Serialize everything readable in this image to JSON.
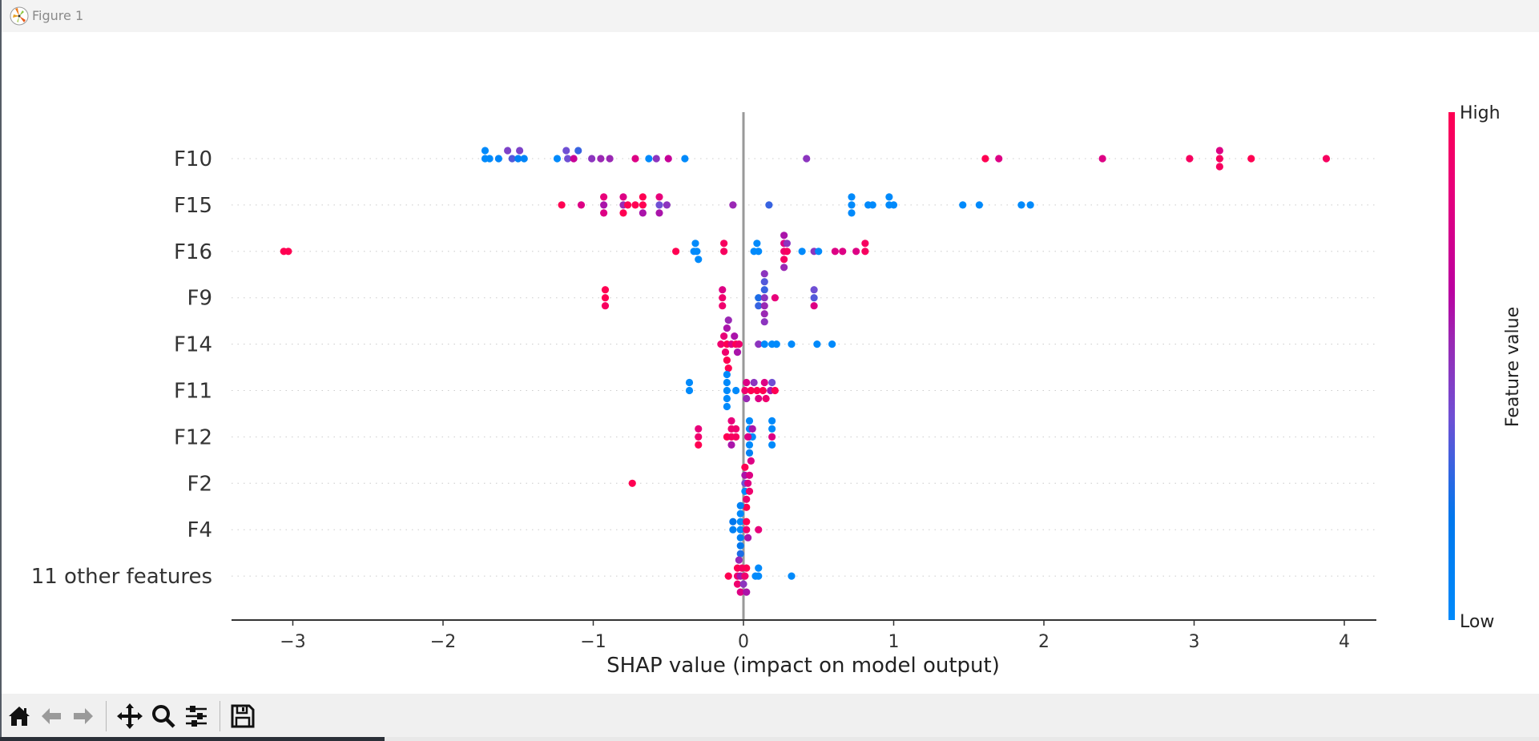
{
  "window": {
    "title": "Figure 1"
  },
  "toolbar": {
    "buttons": [
      {
        "name": "home",
        "icon": "home-icon",
        "label": "Home"
      },
      {
        "name": "back",
        "icon": "arrow-left-icon",
        "label": "Back"
      },
      {
        "name": "forward",
        "icon": "arrow-right-icon",
        "label": "Forward"
      },
      {
        "name": "pan",
        "icon": "move-icon",
        "label": "Pan"
      },
      {
        "name": "zoom",
        "icon": "magnifier-icon",
        "label": "Zoom"
      },
      {
        "name": "configure",
        "icon": "sliders-icon",
        "label": "Configure subplots"
      },
      {
        "name": "save",
        "icon": "floppy-disk-icon",
        "label": "Save"
      }
    ]
  },
  "colors": {
    "low": "#008afb",
    "mid": "#b400a6",
    "high": "#ff0052",
    "zero_line": "#999999",
    "axis": "#333333"
  },
  "chart_data": {
    "type": "scatter",
    "subtype": "shap-beeswarm",
    "title": "",
    "xlabel": "SHAP value (impact on model output)",
    "ylabel": "",
    "xlim": [
      -3.4,
      4.25
    ],
    "xticks": [
      -3,
      -2,
      -1,
      0,
      1,
      2,
      3,
      4
    ],
    "xtick_labels": [
      "−3",
      "−2",
      "−1",
      "0",
      "1",
      "2",
      "3",
      "4"
    ],
    "grid": "dotted horizontal per feature",
    "colorbar": {
      "label": "Feature value",
      "high_label": "High",
      "low_label": "Low",
      "placement": "right"
    },
    "features": [
      {
        "name": "F10",
        "points": [
          [
            -1.72,
            0,
            0.0
          ],
          [
            -1.72,
            1,
            0.0
          ],
          [
            -1.69,
            0,
            0.0
          ],
          [
            -1.63,
            0,
            0.05
          ],
          [
            -1.57,
            1,
            0.45
          ],
          [
            -1.54,
            0,
            0.35
          ],
          [
            -1.5,
            0,
            0.1
          ],
          [
            -1.49,
            1,
            0.45
          ],
          [
            -1.46,
            0,
            0.05
          ],
          [
            -1.24,
            0,
            0.0
          ],
          [
            -1.18,
            1,
            0.4
          ],
          [
            -1.17,
            0,
            0.4
          ],
          [
            -1.13,
            0,
            0.7
          ],
          [
            -1.1,
            1,
            0.3
          ],
          [
            -1.01,
            0,
            0.5
          ],
          [
            -0.95,
            0,
            0.55
          ],
          [
            -0.89,
            0,
            0.55
          ],
          [
            -0.72,
            0,
            0.8
          ],
          [
            -0.63,
            0,
            0.0
          ],
          [
            -0.58,
            0,
            0.5
          ],
          [
            -0.5,
            0,
            0.7
          ],
          [
            -0.39,
            0,
            0.0
          ],
          [
            0.42,
            0,
            0.5
          ],
          [
            1.61,
            0,
            1.0
          ],
          [
            1.7,
            0,
            0.8
          ],
          [
            2.39,
            0,
            0.8
          ],
          [
            2.97,
            0,
            0.95
          ],
          [
            3.17,
            0,
            0.95
          ],
          [
            3.17,
            1,
            0.8
          ],
          [
            3.17,
            -1,
            0.95
          ],
          [
            3.38,
            0,
            1.0
          ],
          [
            3.88,
            0,
            0.95
          ]
        ]
      },
      {
        "name": "F15",
        "points": [
          [
            -1.21,
            0,
            1.0
          ],
          [
            -1.08,
            0,
            0.8
          ],
          [
            -0.93,
            0,
            0.6
          ],
          [
            -0.93,
            1,
            0.85
          ],
          [
            -0.93,
            -1,
            0.8
          ],
          [
            -0.8,
            0,
            0.55
          ],
          [
            -0.8,
            1,
            0.8
          ],
          [
            -0.8,
            -1,
            1.0
          ],
          [
            -0.77,
            0,
            1.0
          ],
          [
            -0.72,
            0,
            1.0
          ],
          [
            -0.67,
            0,
            1.0
          ],
          [
            -0.67,
            1,
            1.0
          ],
          [
            -0.67,
            -1,
            0.6
          ],
          [
            -0.56,
            0,
            0.4
          ],
          [
            -0.56,
            1,
            0.85
          ],
          [
            -0.56,
            -1,
            0.6
          ],
          [
            -0.51,
            0,
            0.5
          ],
          [
            -0.07,
            0,
            0.55
          ],
          [
            0.17,
            0,
            0.3
          ],
          [
            0.72,
            0,
            0.0
          ],
          [
            0.72,
            1,
            0.0
          ],
          [
            0.72,
            -1,
            0.0
          ],
          [
            0.83,
            0,
            0.0
          ],
          [
            0.86,
            0,
            0.0
          ],
          [
            0.97,
            0,
            0.0
          ],
          [
            0.97,
            1,
            0.0
          ],
          [
            1.0,
            0,
            0.0
          ],
          [
            1.46,
            0,
            0.0
          ],
          [
            1.57,
            0,
            0.0
          ],
          [
            1.85,
            0,
            0.0
          ],
          [
            1.91,
            0,
            0.0
          ]
        ]
      },
      {
        "name": "F16",
        "points": [
          [
            -3.06,
            0,
            1.0
          ],
          [
            -3.03,
            0,
            1.0
          ],
          [
            -0.45,
            0,
            1.0
          ],
          [
            -0.33,
            0,
            0.0
          ],
          [
            -0.32,
            1,
            0.0
          ],
          [
            -0.31,
            0,
            0.0
          ],
          [
            -0.3,
            -1,
            0.0
          ],
          [
            -0.13,
            0,
            0.95
          ],
          [
            -0.13,
            1,
            0.95
          ],
          [
            0.07,
            0,
            0.0
          ],
          [
            0.09,
            1,
            0.0
          ],
          [
            0.1,
            0,
            0.0
          ],
          [
            0.27,
            0,
            0.9
          ],
          [
            0.27,
            1,
            0.8
          ],
          [
            0.27,
            -1,
            0.95
          ],
          [
            0.27,
            2,
            0.6
          ],
          [
            0.27,
            -2,
            0.55
          ],
          [
            0.29,
            0,
            0.95
          ],
          [
            0.29,
            1,
            0.5
          ],
          [
            0.39,
            0,
            0.0
          ],
          [
            0.47,
            0,
            0.5
          ],
          [
            0.5,
            0,
            0.0
          ],
          [
            0.61,
            0,
            0.8
          ],
          [
            0.66,
            0,
            0.8
          ],
          [
            0.75,
            0,
            0.8
          ],
          [
            0.81,
            0,
            0.95
          ],
          [
            0.81,
            1,
            0.95
          ]
        ]
      },
      {
        "name": "F9",
        "points": [
          [
            -0.92,
            0,
            1.0
          ],
          [
            -0.92,
            1,
            1.0
          ],
          [
            -0.92,
            -1,
            0.95
          ],
          [
            -0.14,
            0,
            0.9
          ],
          [
            -0.14,
            1,
            0.8
          ],
          [
            -0.14,
            -1,
            0.9
          ],
          [
            0.1,
            0,
            0.25
          ],
          [
            0.1,
            -1,
            0.3
          ],
          [
            0.14,
            0,
            0.5
          ],
          [
            0.14,
            1,
            0.3
          ],
          [
            0.14,
            -1,
            0.55
          ],
          [
            0.14,
            2,
            0.35
          ],
          [
            0.14,
            -2,
            0.55
          ],
          [
            0.14,
            3,
            0.5
          ],
          [
            0.14,
            -3,
            0.5
          ],
          [
            0.21,
            0,
            0.85
          ],
          [
            0.47,
            0,
            0.35
          ],
          [
            0.47,
            1,
            0.4
          ],
          [
            0.47,
            -1,
            0.8
          ]
        ]
      },
      {
        "name": "F14",
        "points": [
          [
            -0.15,
            0,
            0.9
          ],
          [
            -0.13,
            1,
            0.85
          ],
          [
            -0.12,
            -1,
            0.9
          ],
          [
            -0.11,
            0,
            1.0
          ],
          [
            -0.11,
            2,
            0.6
          ],
          [
            -0.11,
            -2,
            1.0
          ],
          [
            -0.1,
            3,
            0.55
          ],
          [
            -0.1,
            -3,
            1.0
          ],
          [
            -0.08,
            0,
            0.8
          ],
          [
            -0.06,
            1,
            0.6
          ],
          [
            -0.05,
            0,
            1.0
          ],
          [
            -0.04,
            -1,
            0.6
          ],
          [
            -0.03,
            0,
            0.9
          ],
          [
            0.1,
            0,
            0.5
          ],
          [
            0.14,
            0,
            0.0
          ],
          [
            0.19,
            0,
            0.0
          ],
          [
            0.22,
            0,
            0.0
          ],
          [
            0.32,
            0,
            0.0
          ],
          [
            0.49,
            0,
            0.0
          ],
          [
            0.59,
            0,
            0.0
          ]
        ]
      },
      {
        "name": "F11",
        "points": [
          [
            -0.36,
            0,
            0.0
          ],
          [
            -0.36,
            1,
            0.0
          ],
          [
            -0.11,
            0,
            0.0
          ],
          [
            -0.11,
            1,
            0.0
          ],
          [
            -0.11,
            -1,
            0.0
          ],
          [
            -0.11,
            2,
            0.0
          ],
          [
            -0.11,
            -2,
            0.0
          ],
          [
            -0.05,
            0,
            0.0
          ],
          [
            0.01,
            0,
            0.9
          ],
          [
            0.02,
            1,
            0.8
          ],
          [
            0.02,
            -1,
            0.55
          ],
          [
            0.05,
            0,
            1.0
          ],
          [
            0.07,
            1,
            0.5
          ],
          [
            0.09,
            0,
            1.0
          ],
          [
            0.1,
            -1,
            0.8
          ],
          [
            0.13,
            0,
            1.0
          ],
          [
            0.14,
            1,
            0.8
          ],
          [
            0.15,
            -1,
            0.9
          ],
          [
            0.18,
            0,
            0.6
          ],
          [
            0.19,
            1,
            0.4
          ],
          [
            0.21,
            0,
            1.0
          ]
        ]
      },
      {
        "name": "F12",
        "points": [
          [
            -0.3,
            0,
            0.9
          ],
          [
            -0.3,
            1,
            0.85
          ],
          [
            -0.3,
            -1,
            1.0
          ],
          [
            -0.11,
            0,
            1.0
          ],
          [
            -0.08,
            0,
            0.95
          ],
          [
            -0.08,
            1,
            0.9
          ],
          [
            -0.08,
            2,
            0.85
          ],
          [
            -0.08,
            -1,
            0.6
          ],
          [
            -0.05,
            0,
            0.95
          ],
          [
            -0.05,
            1,
            0.9
          ],
          [
            0.04,
            0,
            0.0
          ],
          [
            0.04,
            1,
            0.0
          ],
          [
            0.04,
            2,
            0.0
          ],
          [
            0.04,
            -1,
            0.0
          ],
          [
            0.04,
            -2,
            0.1
          ],
          [
            0.05,
            -3,
            0.8
          ],
          [
            0.06,
            0,
            0.0
          ],
          [
            0.06,
            1,
            0.6
          ],
          [
            0.03,
            0,
            0.8
          ],
          [
            0.19,
            0,
            0.8
          ],
          [
            0.19,
            1,
            0.0
          ],
          [
            0.19,
            -1,
            0.0
          ],
          [
            0.19,
            2,
            0.0
          ]
        ]
      },
      {
        "name": "F2",
        "points": [
          [
            -0.74,
            0,
            1.0
          ],
          [
            0.01,
            0,
            0.4
          ],
          [
            0.01,
            1,
            0.6
          ],
          [
            0.01,
            2,
            1.0
          ],
          [
            0.01,
            -1,
            0.0
          ],
          [
            0.02,
            -2,
            0.9
          ],
          [
            0.02,
            -3,
            1.0
          ],
          [
            0.03,
            0,
            0.8
          ],
          [
            0.04,
            1,
            0.8
          ],
          [
            0.04,
            -1,
            0.9
          ]
        ]
      },
      {
        "name": "F4",
        "points": [
          [
            -0.07,
            0,
            0.1
          ],
          [
            -0.07,
            1,
            0.2
          ],
          [
            -0.02,
            0,
            0.0
          ],
          [
            -0.02,
            1,
            0.0
          ],
          [
            -0.02,
            2,
            0.0
          ],
          [
            -0.02,
            -1,
            0.1
          ],
          [
            -0.02,
            -2,
            0.2
          ],
          [
            -0.02,
            -3,
            0.25
          ],
          [
            -0.02,
            3,
            0.1
          ],
          [
            0.02,
            0,
            0.9
          ],
          [
            0.02,
            1,
            1.0
          ],
          [
            0.03,
            -1,
            0.6
          ],
          [
            0.1,
            0,
            0.85
          ]
        ]
      },
      {
        "name": "11 other features",
        "points": [
          [
            -0.1,
            0,
            1.0
          ],
          [
            -0.04,
            0,
            0.9
          ],
          [
            -0.04,
            1,
            1.0
          ],
          [
            -0.04,
            -1,
            0.9
          ],
          [
            -0.03,
            2,
            0.55
          ],
          [
            -0.02,
            -2,
            0.8
          ],
          [
            -0.02,
            0,
            0.6
          ],
          [
            -0.01,
            1,
            0.95
          ],
          [
            0.0,
            -1,
            0.5
          ],
          [
            0.01,
            0,
            0.9
          ],
          [
            0.02,
            -2,
            0.6
          ],
          [
            0.02,
            1,
            1.0
          ],
          [
            0.08,
            0,
            0.0
          ],
          [
            0.1,
            0,
            0.0
          ],
          [
            0.1,
            1,
            0.0
          ],
          [
            0.32,
            0,
            0.0
          ]
        ]
      }
    ]
  }
}
